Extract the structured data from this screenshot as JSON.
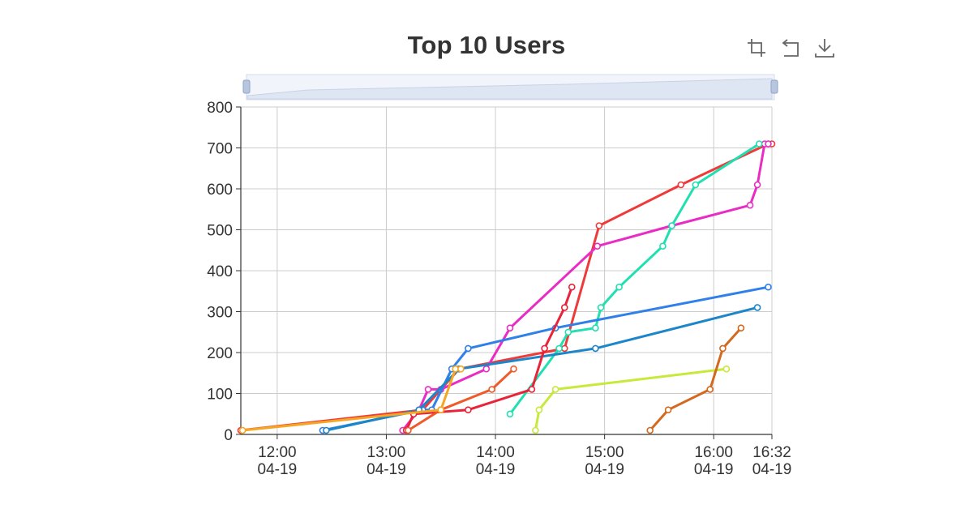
{
  "chart_data": {
    "type": "line",
    "title": "Top 10 Users",
    "xlabel": "",
    "ylabel": "",
    "ylim": [
      0,
      800
    ],
    "y_ticks": [
      "0",
      "100",
      "200",
      "300",
      "400",
      "500",
      "600",
      "700",
      "800"
    ],
    "x_range": [
      "11:40",
      "16:32"
    ],
    "x_ticks": [
      {
        "time": "12:00",
        "date": "04-19"
      },
      {
        "time": "13:00",
        "date": "04-19"
      },
      {
        "time": "14:00",
        "date": "04-19"
      },
      {
        "time": "15:00",
        "date": "04-19"
      },
      {
        "time": "16:00",
        "date": "04-19"
      },
      {
        "time": "16:32",
        "date": "04-19"
      }
    ],
    "grid": true,
    "data_zoom_slider": true,
    "series": [
      {
        "color": "#ee3a3a",
        "points": [
          [
            "11:40",
            10
          ],
          [
            "13:20",
            60
          ],
          [
            "13:40",
            160
          ],
          [
            "14:38",
            210
          ],
          [
            "14:57",
            510
          ],
          [
            "15:42",
            610
          ],
          [
            "16:30",
            710
          ],
          [
            "16:32",
            710
          ]
        ]
      },
      {
        "color": "#e92cc3",
        "points": [
          [
            "13:09",
            10
          ],
          [
            "13:18",
            60
          ],
          [
            "13:23",
            110
          ],
          [
            "13:30",
            110
          ],
          [
            "13:55",
            160
          ],
          [
            "14:08",
            260
          ],
          [
            "14:56",
            460
          ],
          [
            "15:37",
            510
          ],
          [
            "16:20",
            560
          ],
          [
            "16:24",
            610
          ],
          [
            "16:28",
            710
          ],
          [
            "16:30",
            710
          ]
        ]
      },
      {
        "color": "#1fe0b0",
        "points": [
          [
            "14:08",
            50
          ],
          [
            "14:35",
            210
          ],
          [
            "14:40",
            250
          ],
          [
            "14:55",
            260
          ],
          [
            "14:58",
            310
          ],
          [
            "15:08",
            360
          ],
          [
            "15:32",
            460
          ],
          [
            "15:37",
            510
          ],
          [
            "15:50",
            610
          ],
          [
            "16:25",
            710
          ]
        ]
      },
      {
        "color": "#2f80e8",
        "points": [
          [
            "12:25",
            10
          ],
          [
            "13:20",
            60
          ],
          [
            "13:25",
            60
          ],
          [
            "13:36",
            160
          ],
          [
            "13:45",
            210
          ],
          [
            "14:33",
            260
          ],
          [
            "16:30",
            360
          ]
        ]
      },
      {
        "color": "#1d86c8",
        "points": [
          [
            "12:27",
            10
          ],
          [
            "13:18",
            60
          ],
          [
            "13:40",
            160
          ],
          [
            "14:55",
            210
          ],
          [
            "16:24",
            310
          ]
        ]
      },
      {
        "color": "#e8233a",
        "points": [
          [
            "13:11",
            10
          ],
          [
            "13:15",
            50
          ],
          [
            "13:45",
            60
          ],
          [
            "14:20",
            110
          ],
          [
            "14:27",
            210
          ],
          [
            "14:38",
            310
          ],
          [
            "14:42",
            360
          ]
        ]
      },
      {
        "color": "#ee5a2a",
        "points": [
          [
            "13:12",
            10
          ],
          [
            "13:30",
            60
          ],
          [
            "13:58",
            110
          ],
          [
            "14:10",
            160
          ]
        ]
      },
      {
        "color": "#f5a623",
        "points": [
          [
            "11:41",
            10
          ],
          [
            "13:30",
            60
          ],
          [
            "13:38",
            160
          ],
          [
            "13:41",
            160
          ]
        ]
      },
      {
        "color": "#c7e93a",
        "points": [
          [
            "14:22",
            10
          ],
          [
            "14:24",
            60
          ],
          [
            "14:33",
            110
          ],
          [
            "16:07",
            160
          ]
        ]
      },
      {
        "color": "#d2691e",
        "points": [
          [
            "15:25",
            10
          ],
          [
            "15:35",
            60
          ],
          [
            "15:58",
            110
          ],
          [
            "16:05",
            210
          ],
          [
            "16:15",
            260
          ]
        ]
      }
    ]
  },
  "toolbox": {
    "items": [
      {
        "name": "zoom-select-icon"
      },
      {
        "name": "zoom-reset-icon"
      },
      {
        "name": "download-icon"
      }
    ]
  }
}
